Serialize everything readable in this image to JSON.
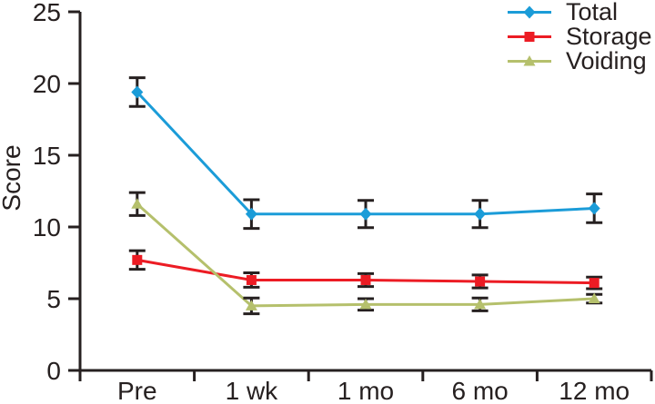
{
  "chart_data": {
    "type": "line",
    "title": "",
    "xlabel": "",
    "ylabel": "Score",
    "categories": [
      "Pre",
      "1 wk",
      "1 mo",
      "6 mo",
      "12 mo"
    ],
    "series": [
      {
        "name": "Total",
        "color": "#1b9cd8",
        "marker": "diamond",
        "values": [
          19.4,
          10.9,
          10.9,
          10.9,
          11.3
        ],
        "errors": [
          1.0,
          1.0,
          0.95,
          0.95,
          1.0
        ]
      },
      {
        "name": "Storage",
        "color": "#ec1c24",
        "marker": "square",
        "values": [
          7.7,
          6.3,
          6.3,
          6.2,
          6.1
        ],
        "errors": [
          0.65,
          0.5,
          0.45,
          0.45,
          0.4
        ]
      },
      {
        "name": "Voiding",
        "color": "#b5c06c",
        "marker": "triangle",
        "values": [
          11.6,
          4.5,
          4.6,
          4.6,
          5.0
        ],
        "errors": [
          0.8,
          0.55,
          0.4,
          0.45,
          0.3
        ]
      }
    ],
    "ylim": [
      0,
      25
    ],
    "ytick_step": 5,
    "yticks": [
      0,
      5,
      10,
      15,
      20,
      25
    ],
    "grid": false,
    "legend_position": "top-right",
    "axis_color": "#262020",
    "error_bar_color": "#262020",
    "background_color": "#ffffff"
  }
}
